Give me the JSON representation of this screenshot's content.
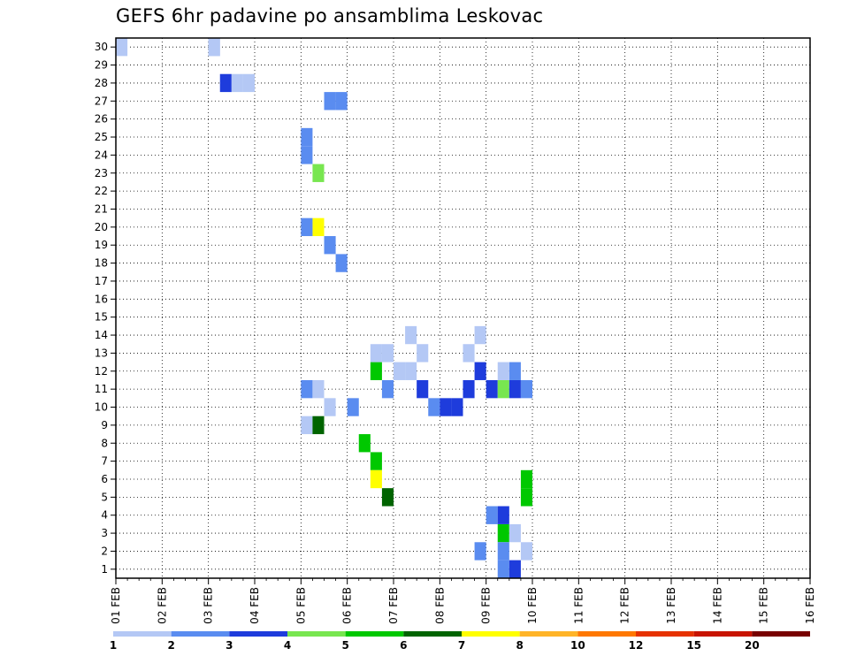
{
  "chart_data": {
    "type": "heatmap",
    "title": "GEFS 6hr padavine po ansamblima Leskovac",
    "x_tick_labels": [
      "01 FEB",
      "02 FEB",
      "03 FEB",
      "04 FEB",
      "05 FEB",
      "06 FEB",
      "07 FEB",
      "08 FEB",
      "09 FEB",
      "10 FEB",
      "11 FEB",
      "12 FEB",
      "13 FEB",
      "14 FEB",
      "15 FEB",
      "16 FEB"
    ],
    "y_tick_labels": [
      "1",
      "2",
      "3",
      "4",
      "5",
      "6",
      "7",
      "8",
      "9",
      "10",
      "11",
      "12",
      "13",
      "14",
      "15",
      "16",
      "17",
      "18",
      "19",
      "20",
      "21",
      "22",
      "23",
      "24",
      "25",
      "26",
      "27",
      "28",
      "29",
      "30"
    ],
    "x_range_days": [
      0,
      15
    ],
    "steps_per_day": 4,
    "y_range": [
      0,
      30
    ],
    "grid": true,
    "legend": {
      "position": "bottom",
      "labels": [
        "1",
        "2",
        "3",
        "4",
        "5",
        "6",
        "7",
        "8",
        "10",
        "12",
        "15",
        "20"
      ],
      "bin_colors": [
        "#b4c8f5",
        "#5a8cf0",
        "#1e3cdc",
        "#78e650",
        "#00c800",
        "#006400",
        "#ffff00",
        "#ffb428",
        "#ff7800",
        "#e63200",
        "#c81400",
        "#780000"
      ]
    },
    "cells": [
      [
        0,
        30,
        1
      ],
      [
        8,
        30,
        1
      ],
      [
        9,
        28,
        3
      ],
      [
        10,
        28,
        1
      ],
      [
        11,
        28,
        1
      ],
      [
        16,
        24,
        2
      ],
      [
        16,
        25,
        2
      ],
      [
        17,
        23,
        4
      ],
      [
        18,
        27,
        2
      ],
      [
        19,
        27,
        2
      ],
      [
        17,
        20,
        7
      ],
      [
        16,
        20,
        2
      ],
      [
        8,
        30,
        1
      ],
      [
        16,
        11,
        2
      ],
      [
        17,
        11,
        1
      ],
      [
        18,
        19,
        2
      ],
      [
        19,
        18,
        2
      ],
      [
        16,
        9,
        1
      ],
      [
        17,
        9,
        6
      ],
      [
        18,
        10,
        1
      ],
      [
        20,
        10,
        2
      ],
      [
        21,
        8,
        5
      ],
      [
        22,
        7,
        5
      ],
      [
        22,
        6,
        7
      ],
      [
        23,
        5,
        6
      ],
      [
        23,
        11,
        2
      ],
      [
        22,
        12,
        5
      ],
      [
        22,
        13,
        1
      ],
      [
        23,
        13,
        1
      ],
      [
        24,
        12,
        1
      ],
      [
        25,
        12,
        1
      ],
      [
        25,
        14,
        1
      ],
      [
        26,
        13,
        1
      ],
      [
        26,
        11,
        3
      ],
      [
        27,
        10,
        2
      ],
      [
        28,
        10,
        3
      ],
      [
        29,
        10,
        3
      ],
      [
        30,
        11,
        3
      ],
      [
        31,
        12,
        3
      ],
      [
        30,
        13,
        1
      ],
      [
        31,
        14,
        1
      ],
      [
        32,
        11,
        3
      ],
      [
        33,
        11,
        4
      ],
      [
        34,
        11,
        3
      ],
      [
        35,
        11,
        2
      ],
      [
        34,
        12,
        2
      ],
      [
        33,
        12,
        1
      ],
      [
        35,
        6,
        5
      ],
      [
        35,
        5,
        5
      ],
      [
        33,
        3,
        5
      ],
      [
        34,
        3,
        1
      ],
      [
        31,
        2,
        2
      ],
      [
        32,
        4,
        2
      ],
      [
        33,
        4,
        3
      ],
      [
        33,
        2,
        2
      ],
      [
        33,
        1,
        2
      ],
      [
        34,
        1,
        3
      ],
      [
        35,
        2,
        1
      ]
    ]
  }
}
